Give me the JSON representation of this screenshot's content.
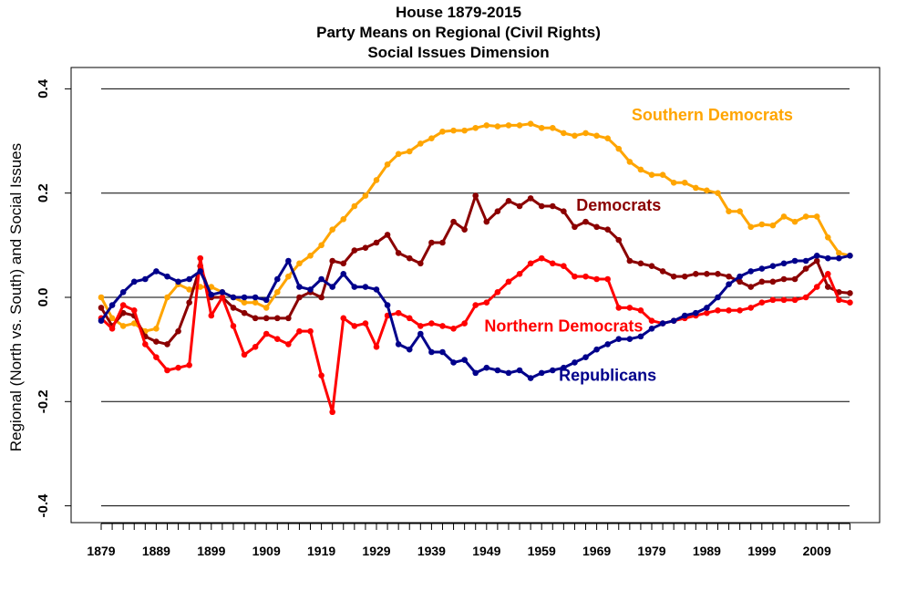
{
  "chart_data": {
    "type": "line",
    "title": [
      "House 1879-2015",
      "Party Means on Regional (Civil Rights)",
      "Social Issues Dimension"
    ],
    "xlabel": "",
    "ylabel": "Regional (North vs. South) and Social Issues",
    "ylim": [
      -0.43,
      0.43
    ],
    "xlim": [
      1875,
      2020
    ],
    "yticks": [
      0.4,
      0.2,
      0.0,
      -0.2,
      -0.4
    ],
    "ytick_labels": [
      "0.4",
      "0.2",
      "0.0",
      "-0.2",
      "-0.4"
    ],
    "gridlines_y": [
      0.4,
      0.2,
      0.0,
      -0.2,
      -0.4
    ],
    "grid": true,
    "xtick_years_every": 2,
    "xtick_labels": [
      "1879",
      "1889",
      "1899",
      "1909",
      "1919",
      "1929",
      "1939",
      "1949",
      "1959",
      "1969",
      "1979",
      "1989",
      "1999",
      "2009"
    ],
    "x": [
      1879,
      1881,
      1883,
      1885,
      1887,
      1889,
      1891,
      1893,
      1895,
      1897,
      1899,
      1901,
      1903,
      1905,
      1907,
      1909,
      1911,
      1913,
      1915,
      1917,
      1919,
      1921,
      1923,
      1925,
      1927,
      1929,
      1931,
      1933,
      1935,
      1937,
      1939,
      1941,
      1943,
      1945,
      1947,
      1949,
      1951,
      1953,
      1955,
      1957,
      1959,
      1961,
      1963,
      1965,
      1967,
      1969,
      1971,
      1973,
      1975,
      1977,
      1979,
      1981,
      1983,
      1985,
      1987,
      1989,
      1991,
      1993,
      1995,
      1997,
      1999,
      2001,
      2003,
      2005,
      2007,
      2009,
      2011,
      2013,
      2015
    ],
    "series": [
      {
        "name": "Southern Democrats",
        "color": "#FFA500",
        "label_position": "upper-right",
        "values": [
          0.0,
          -0.04,
          -0.055,
          -0.05,
          -0.065,
          -0.06,
          0.0,
          0.025,
          0.015,
          0.02,
          0.02,
          0.01,
          0.0,
          -0.01,
          -0.01,
          -0.02,
          0.01,
          0.04,
          0.065,
          0.08,
          0.1,
          0.13,
          0.15,
          0.175,
          0.195,
          0.225,
          0.255,
          0.275,
          0.28,
          0.295,
          0.305,
          0.318,
          0.32,
          0.32,
          0.325,
          0.33,
          0.328,
          0.33,
          0.33,
          0.333,
          0.325,
          0.325,
          0.315,
          0.31,
          0.315,
          0.31,
          0.305,
          0.285,
          0.26,
          0.245,
          0.235,
          0.235,
          0.22,
          0.22,
          0.21,
          0.205,
          0.2,
          0.165,
          0.165,
          0.135,
          0.14,
          0.138,
          0.155,
          0.145,
          0.155,
          0.155,
          0.115,
          0.085,
          0.08
        ]
      },
      {
        "name": "Democrats",
        "color": "#8B0000",
        "label_position": "upper-middle",
        "values": [
          -0.02,
          -0.055,
          -0.03,
          -0.035,
          -0.075,
          -0.085,
          -0.09,
          -0.065,
          -0.01,
          0.06,
          0.0,
          0.0,
          -0.02,
          -0.03,
          -0.04,
          -0.04,
          -0.04,
          -0.04,
          0.0,
          0.01,
          0.0,
          0.07,
          0.065,
          0.09,
          0.095,
          0.105,
          0.12,
          0.085,
          0.075,
          0.065,
          0.105,
          0.105,
          0.145,
          0.13,
          0.195,
          0.145,
          0.165,
          0.185,
          0.175,
          0.19,
          0.175,
          0.175,
          0.165,
          0.135,
          0.145,
          0.135,
          0.13,
          0.11,
          0.07,
          0.065,
          0.06,
          0.05,
          0.04,
          0.04,
          0.045,
          0.045,
          0.045,
          0.04,
          0.03,
          0.02,
          0.03,
          0.03,
          0.035,
          0.035,
          0.055,
          0.07,
          0.02,
          0.01,
          0.008
        ]
      },
      {
        "name": "Northern Democrats",
        "color": "#FF0000",
        "label_position": "middle",
        "values": [
          -0.04,
          -0.06,
          -0.015,
          -0.025,
          -0.09,
          -0.115,
          -0.14,
          -0.135,
          -0.13,
          0.075,
          -0.035,
          0.0,
          -0.055,
          -0.11,
          -0.095,
          -0.07,
          -0.08,
          -0.09,
          -0.065,
          -0.065,
          -0.15,
          -0.22,
          -0.04,
          -0.055,
          -0.05,
          -0.095,
          -0.035,
          -0.03,
          -0.04,
          -0.055,
          -0.05,
          -0.055,
          -0.06,
          -0.05,
          -0.015,
          -0.01,
          0.01,
          0.03,
          0.045,
          0.065,
          0.075,
          0.065,
          0.06,
          0.04,
          0.04,
          0.035,
          0.035,
          -0.02,
          -0.02,
          -0.025,
          -0.045,
          -0.05,
          -0.045,
          -0.04,
          -0.035,
          -0.03,
          -0.025,
          -0.025,
          -0.025,
          -0.02,
          -0.01,
          -0.005,
          -0.005,
          -0.005,
          0.0,
          0.02,
          0.045,
          -0.005,
          -0.01
        ]
      },
      {
        "name": "Republicans",
        "color": "#00008B",
        "label_position": "lower-middle",
        "values": [
          -0.045,
          -0.015,
          0.01,
          0.03,
          0.035,
          0.05,
          0.04,
          0.03,
          0.035,
          0.05,
          0.005,
          0.01,
          0.0,
          0.0,
          0.0,
          -0.005,
          0.035,
          0.07,
          0.02,
          0.015,
          0.035,
          0.02,
          0.045,
          0.02,
          0.02,
          0.015,
          -0.015,
          -0.09,
          -0.1,
          -0.07,
          -0.105,
          -0.105,
          -0.125,
          -0.12,
          -0.145,
          -0.135,
          -0.14,
          -0.145,
          -0.14,
          -0.155,
          -0.145,
          -0.14,
          -0.135,
          -0.125,
          -0.115,
          -0.1,
          -0.09,
          -0.08,
          -0.08,
          -0.075,
          -0.06,
          -0.05,
          -0.045,
          -0.035,
          -0.03,
          -0.02,
          0.0,
          0.025,
          0.04,
          0.05,
          0.055,
          0.06,
          0.065,
          0.07,
          0.07,
          0.08,
          0.075,
          0.075,
          0.08
        ]
      }
    ],
    "annotations": [
      {
        "text": "Southern Democrats",
        "color": "#FFA500",
        "x": 1990,
        "y": 0.35
      },
      {
        "text": "Democrats",
        "color": "#8B0000",
        "x": 1973,
        "y": 0.177
      },
      {
        "text": "Northern Democrats",
        "color": "#FF0000",
        "x": 1963,
        "y": -0.055
      },
      {
        "text": "Republicans",
        "color": "#00008B",
        "x": 1971,
        "y": -0.15
      }
    ]
  }
}
